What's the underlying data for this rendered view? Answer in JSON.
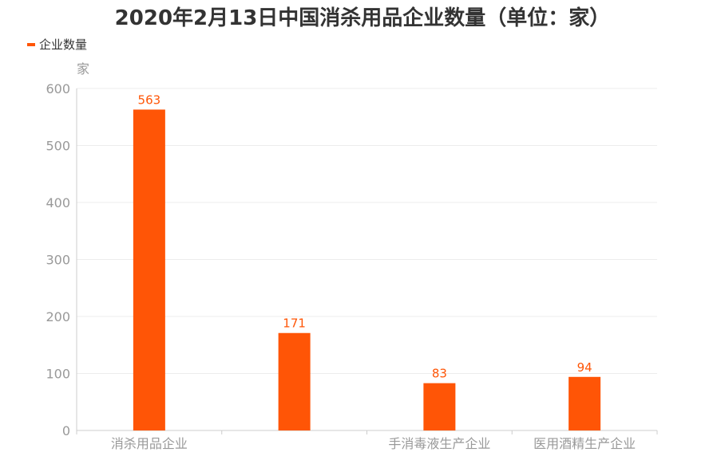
{
  "chart_data": {
    "type": "bar",
    "title": "2020年2月13日中国消杀用品企业数量（单位：家）",
    "categories": [
      "消杀用品企业",
      "",
      "手消毒液生产企业",
      "医用酒精生产企业"
    ],
    "series": [
      {
        "name": "企业数量",
        "values": [
          563,
          171,
          83,
          94
        ]
      }
    ],
    "ylabel": "家",
    "ylim": [
      0,
      600
    ],
    "yticks": [
      0,
      100,
      200,
      300,
      400,
      500,
      600
    ],
    "grid": true,
    "legend": "top-left",
    "data_labels": true,
    "colors": {
      "bar": "#ff5506",
      "grid": "#ececec",
      "axis_text": "#999999",
      "title": "#333333"
    }
  }
}
